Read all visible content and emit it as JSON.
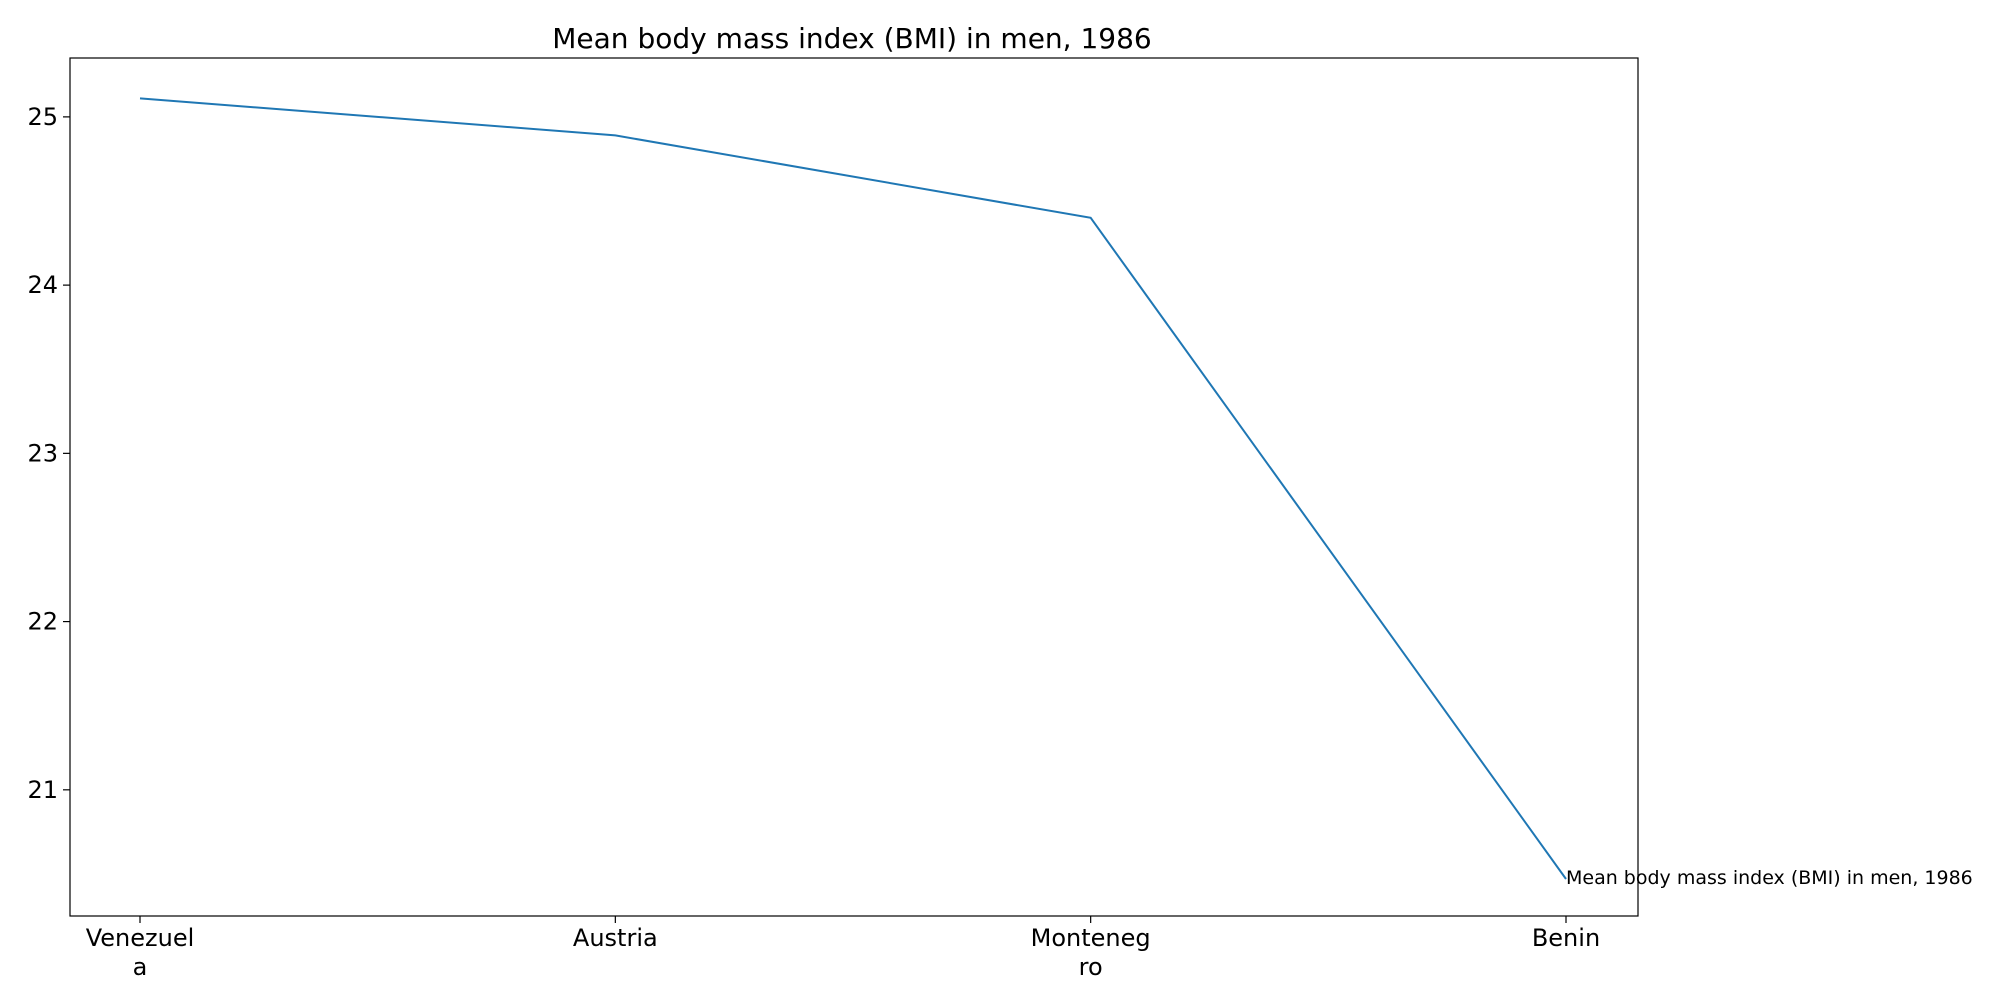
{
  "chart_data": {
    "type": "line",
    "title": "Mean body mass index (BMI) in men, 1986",
    "xlabel": "",
    "ylabel": "",
    "categories": [
      "Venezuela",
      "Austria",
      "Montenegro",
      "Benin"
    ],
    "category_tick_lines": [
      [
        "Venezuel",
        "a"
      ],
      [
        "Austria"
      ],
      [
        "Monteneg",
        "ro"
      ],
      [
        "Benin"
      ]
    ],
    "series": [
      {
        "values": [
          25.11,
          24.89,
          24.4,
          20.47
        ],
        "color": "#1f77b4"
      }
    ],
    "ylim": [
      20.25,
      25.35
    ],
    "yticks": [
      21,
      22,
      23,
      24,
      25
    ],
    "grid": false,
    "end_annotation": "Mean body mass index (BMI) in men, 1986"
  }
}
